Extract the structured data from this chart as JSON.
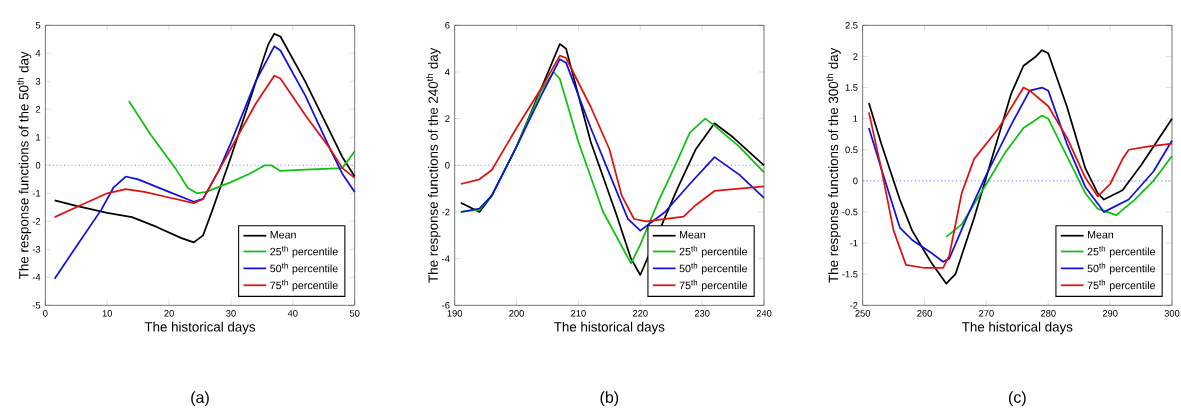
{
  "chart_data": [
    {
      "type": "line",
      "xlabel": "The historical days",
      "ylabel": "The response functions of the 50$^{th}$ day",
      "xlim": [
        0,
        50
      ],
      "ylim": [
        -5,
        5
      ],
      "xticks": [
        0,
        10,
        20,
        30,
        40,
        50
      ],
      "yticks": [
        -5,
        -4,
        -3,
        -2,
        -1,
        0,
        1,
        2,
        3,
        4,
        5
      ],
      "grid": false,
      "legend": "bottom right",
      "marker": "none",
      "line_style": "solid",
      "annotations": [
        "(a)"
      ],
      "ref_lines": [
        {
          "axis": "y",
          "value": 0,
          "color": "#8080ff",
          "line_style": "dotted"
        }
      ],
      "series": [
        {
          "name": "Mean",
          "color": "#000000",
          "x": [
            1.5,
            5,
            10,
            14,
            18,
            22,
            24,
            25.5,
            27,
            30,
            33,
            36,
            37,
            38,
            42,
            46,
            48,
            50
          ],
          "values": [
            -1.25,
            -1.45,
            -1.7,
            -1.85,
            -2.2,
            -2.6,
            -2.75,
            -2.5,
            -1.6,
            0.3,
            2.3,
            4.3,
            4.7,
            4.6,
            3.0,
            1.2,
            0.3,
            -0.4
          ]
        },
        {
          "name": "25$^{th}$ percentile",
          "color": "#10c010",
          "x": [
            13.5,
            17,
            21,
            23,
            24.5,
            26,
            30,
            33,
            35.5,
            36.5,
            38,
            42,
            48,
            50
          ],
          "values": [
            2.3,
            1.1,
            -0.1,
            -0.8,
            -1.0,
            -0.95,
            -0.6,
            -0.3,
            0.0,
            0.0,
            -0.2,
            -0.15,
            -0.1,
            0.5
          ]
        },
        {
          "name": "50$^{th}$ percentile",
          "color": "#1010e0",
          "x": [
            1.5,
            5,
            9,
            11,
            13,
            15,
            20,
            24,
            25.5,
            28,
            30,
            34,
            37,
            38,
            42,
            46,
            48,
            50
          ],
          "values": [
            -4.05,
            -2.9,
            -1.6,
            -0.8,
            -0.4,
            -0.5,
            -0.95,
            -1.3,
            -1.2,
            -0.2,
            0.8,
            3.0,
            4.25,
            4.1,
            2.5,
            0.6,
            -0.3,
            -0.95
          ]
        },
        {
          "name": "75$^{th}$ percentile",
          "color": "#e01010",
          "x": [
            1.5,
            5,
            10,
            13,
            16,
            20,
            24,
            25.5,
            28,
            30,
            34,
            37,
            38,
            42,
            46,
            48,
            50
          ],
          "values": [
            -1.85,
            -1.5,
            -1.0,
            -0.85,
            -0.95,
            -1.15,
            -1.35,
            -1.2,
            -0.2,
            0.6,
            2.2,
            3.2,
            3.1,
            1.8,
            0.6,
            -0.1,
            -0.45
          ]
        }
      ]
    },
    {
      "type": "line",
      "xlabel": "The historical days",
      "ylabel": "The response functions of the 240$^{th}$ day",
      "xlim": [
        190,
        240
      ],
      "ylim": [
        -6,
        6
      ],
      "xticks": [
        190,
        200,
        210,
        220,
        230,
        240
      ],
      "yticks": [
        -6,
        -4,
        -2,
        0,
        2,
        4,
        6
      ],
      "grid": false,
      "legend": "bottom right",
      "marker": "none",
      "line_style": "solid",
      "annotations": [
        "(b)"
      ],
      "ref_lines": [
        {
          "axis": "y",
          "value": 0,
          "color": "#8080ff",
          "line_style": "dotted"
        }
      ],
      "series": [
        {
          "name": "Mean",
          "color": "#000000",
          "x": [
            191,
            194,
            196,
            200,
            204,
            207,
            208,
            212,
            216,
            218.5,
            220,
            222,
            226,
            229,
            232,
            235,
            240
          ],
          "values": [
            -1.6,
            -2.0,
            -1.3,
            0.8,
            3.3,
            5.2,
            5.0,
            1.0,
            -2.0,
            -4.0,
            -4.7,
            null,
            -1.0,
            0.7,
            1.8,
            1.2,
            0.0
          ]
        },
        {
          "name": "25$^{th}$ percentile",
          "color": "#10c010",
          "x": [
            191,
            194,
            196,
            200,
            204,
            206,
            207,
            210,
            214,
            218.5,
            220,
            223,
            226,
            228,
            230.5,
            232,
            236,
            240
          ],
          "values": [
            -2.0,
            -1.9,
            -1.3,
            0.8,
            3.2,
            4.0,
            3.7,
            1.0,
            -2.0,
            -4.2,
            -3.4,
            -1.5,
            0.2,
            1.4,
            2.0,
            1.7,
            0.8,
            -0.3
          ]
        },
        {
          "name": "50$^{th}$ percentile",
          "color": "#1010e0",
          "x": [
            191,
            194,
            196,
            200,
            204,
            207,
            208,
            212,
            216,
            218,
            220,
            224,
            228,
            232,
            236,
            240
          ],
          "values": [
            -2.0,
            -1.85,
            -1.3,
            0.8,
            3.0,
            4.55,
            4.4,
            1.6,
            -1.0,
            -2.3,
            -2.8,
            -2.0,
            -0.8,
            0.35,
            -0.4,
            -1.4
          ]
        },
        {
          "name": "75$^{th}$ percentile",
          "color": "#e01010",
          "x": [
            191,
            194,
            196,
            200,
            204,
            207,
            208,
            212,
            215,
            217,
            219,
            221,
            227,
            229,
            232,
            236,
            240
          ],
          "values": [
            -0.8,
            -0.6,
            -0.2,
            1.6,
            3.3,
            4.7,
            4.6,
            2.5,
            0.7,
            -1.3,
            -2.3,
            -2.4,
            -2.2,
            -1.7,
            -1.1,
            -1.0,
            -0.9
          ]
        }
      ]
    },
    {
      "type": "line",
      "xlabel": "The historical days",
      "ylabel": "The response functions of the 300$^{th}$ day",
      "xlim": [
        250,
        300
      ],
      "ylim": [
        -2,
        2.5
      ],
      "xticks": [
        250,
        260,
        270,
        280,
        290,
        300
      ],
      "yticks": [
        -2,
        -1.5,
        -1,
        -0.5,
        0,
        0.5,
        1,
        1.5,
        2,
        2.5
      ],
      "grid": false,
      "legend": "bottom right",
      "marker": "none",
      "line_style": "solid",
      "annotations": [
        "(c)"
      ],
      "ref_lines": [
        {
          "axis": "y",
          "value": 0,
          "color": "#8080ff",
          "line_style": "dotted"
        }
      ],
      "series": [
        {
          "name": "Mean",
          "color": "#000000",
          "x": [
            251,
            253,
            256,
            258,
            261,
            263.5,
            265,
            268,
            271,
            274,
            276,
            278,
            279,
            280,
            283,
            286,
            288,
            289,
            292,
            295,
            300
          ],
          "values": [
            1.25,
            0.6,
            -0.3,
            -0.8,
            -1.3,
            -1.65,
            -1.5,
            -0.6,
            0.4,
            1.4,
            1.85,
            2.0,
            2.1,
            2.05,
            1.2,
            0.2,
            -0.2,
            -0.3,
            -0.15,
            0.25,
            1.0
          ]
        },
        {
          "name": "25$^{th}$ percentile",
          "color": "#10c010",
          "x": [
            263.5,
            266,
            270,
            273,
            276,
            279,
            280,
            283,
            286,
            288,
            291,
            294,
            297,
            300
          ],
          "values": [
            -0.9,
            -0.7,
            -0.05,
            0.45,
            0.85,
            1.05,
            1.0,
            0.4,
            -0.2,
            -0.45,
            -0.55,
            -0.3,
            0.0,
            0.4
          ]
        },
        {
          "name": "50$^{th}$ percentile",
          "color": "#1010e0",
          "x": [
            251,
            253,
            256,
            258,
            261,
            263,
            264,
            267,
            270,
            274,
            277,
            279,
            280,
            283,
            286,
            289,
            290,
            293,
            297,
            300
          ],
          "values": [
            0.85,
            0.2,
            -0.75,
            -0.95,
            -1.15,
            -1.3,
            -1.25,
            -0.55,
            0.1,
            0.9,
            1.45,
            1.5,
            1.45,
            0.6,
            -0.1,
            -0.5,
            -0.45,
            -0.3,
            0.15,
            0.65
          ]
        },
        {
          "name": "75$^{th}$ percentile",
          "color": "#e01010",
          "x": [
            251,
            253,
            255,
            257,
            260,
            263,
            264,
            266,
            268,
            272,
            276,
            277,
            280,
            283,
            286,
            288,
            290,
            292,
            293,
            296,
            300
          ],
          "values": [
            1.1,
            0.2,
            -0.8,
            -1.35,
            -1.4,
            -1.4,
            -1.2,
            -0.2,
            0.35,
            0.85,
            1.5,
            1.45,
            1.2,
            0.7,
            0.05,
            -0.25,
            -0.05,
            0.35,
            0.5,
            0.55,
            0.6
          ]
        }
      ]
    }
  ]
}
